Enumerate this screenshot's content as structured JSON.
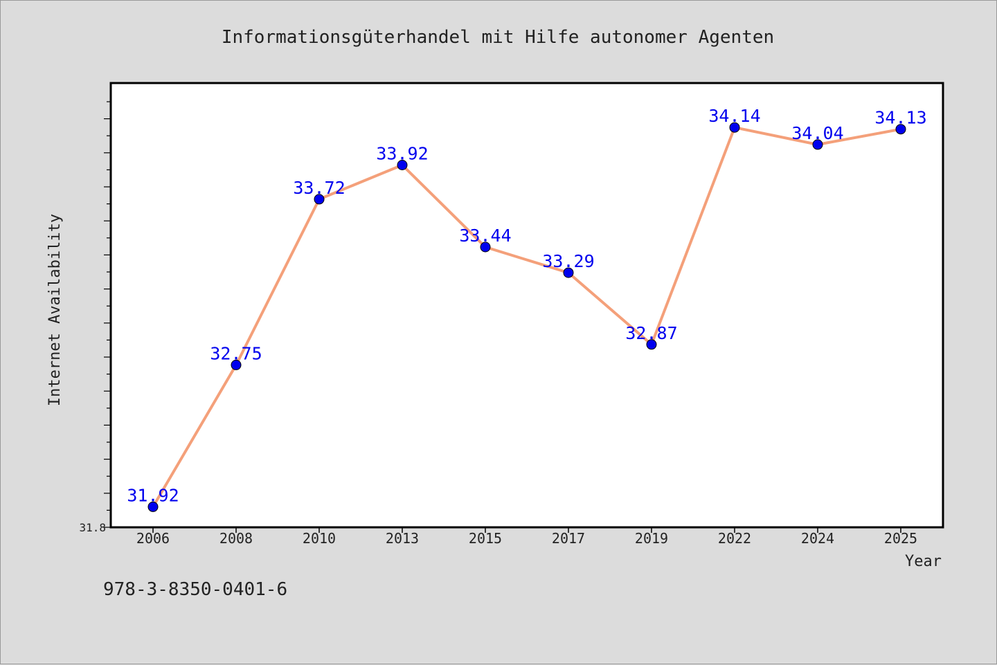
{
  "chart_data": {
    "type": "line",
    "title": "Informationsgüterhandel mit Hilfe autonomer Agenten",
    "xlabel": "Year",
    "ylabel": "Internet Availability",
    "categories": [
      "2006",
      "2008",
      "2010",
      "2013",
      "2015",
      "2017",
      "2019",
      "2022",
      "2024",
      "2025"
    ],
    "series": [
      {
        "values": [
          31.92,
          32.75,
          33.72,
          33.92,
          33.44,
          33.29,
          32.87,
          34.14,
          34.04,
          34.13
        ]
      }
    ],
    "data_labels": [
      "31.92",
      "32.75",
      "33.72",
      "33.92",
      "33.44",
      "33.29",
      "32.87",
      "34.14",
      "34.04",
      "34.13"
    ],
    "y_tick_label": "31.8",
    "ylim": [
      31.8,
      34.4
    ],
    "grid": false,
    "colors": {
      "line": "#f4a07a",
      "marker": "#0000ee",
      "label": "#0000ee"
    }
  },
  "footer": {
    "isbn": "978-3-8350-0401-6"
  }
}
